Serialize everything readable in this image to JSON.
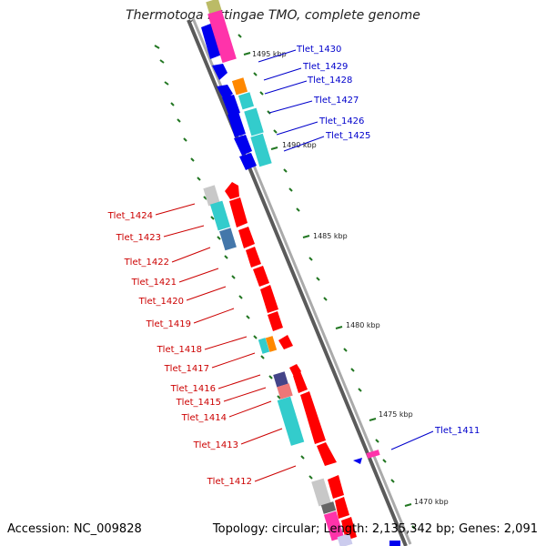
{
  "title": "Thermotoga lettingae TMO, complete genome",
  "accession": "Accession: NC_009828",
  "summary": "Topology: circular; Length: 2,135,342 bp; Genes: 2,091",
  "ticks": [
    "1495 kbp",
    "1490 kbp",
    "1485 kbp",
    "1480 kbp",
    "1475 kbp",
    "1470 kbp"
  ],
  "genes_blue": [
    "Tlet_1430",
    "Tlet_1429",
    "Tlet_1428",
    "Tlet_1427",
    "Tlet_1426",
    "Tlet_1425",
    "Tlet_1411"
  ],
  "genes_red": [
    "Tlet_1424",
    "Tlet_1423",
    "Tlet_1422",
    "Tlet_1421",
    "Tlet_1420",
    "Tlet_1419",
    "Tlet_1418",
    "Tlet_1417",
    "Tlet_1416",
    "Tlet_1415",
    "Tlet_1414",
    "Tlet_1413",
    "Tlet_1412"
  ],
  "colors": {
    "forward_gene": "#0000ee",
    "reverse_gene": "#ff0000",
    "cog_cyan": "#33cccc",
    "cog_orange": "#ff8800",
    "cog_magenta": "#ff33aa",
    "cog_gray": "#c8c8c8",
    "cog_steel": "#4477aa",
    "cog_pink": "#ee7777",
    "cog_purple": "#444488",
    "backbone": "#888888",
    "tick": "#227722"
  }
}
